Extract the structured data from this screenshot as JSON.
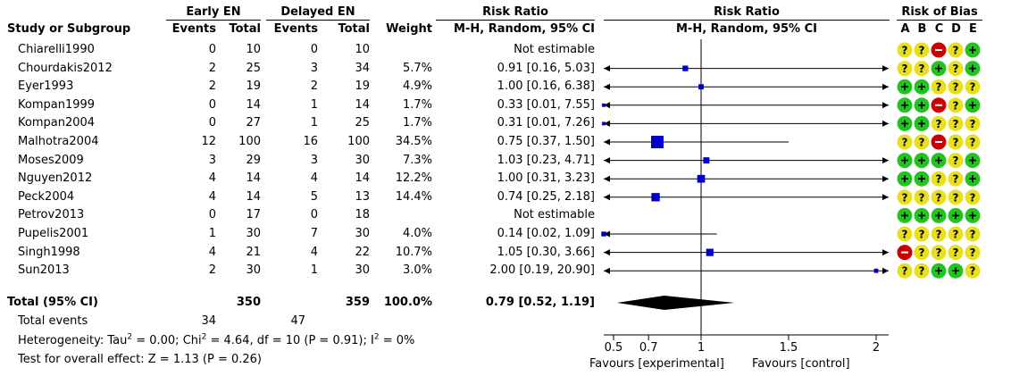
{
  "headers": {
    "early_group": "Early EN",
    "delayed_group": "Delayed EN",
    "rr_group": "Risk Ratio",
    "rr_plot_group": "Risk Ratio",
    "rob_group": "Risk of Bias",
    "study": "Study or Subgroup",
    "events_early": "Events",
    "total_early": "Total",
    "events_delayed": "Events",
    "total_delayed": "Total",
    "weight": "Weight",
    "rr_method": "M-H, Random, 95% CI",
    "rr_plot_method": "M-H, Random, 95% CI",
    "rob_cols": [
      "A",
      "B",
      "C",
      "D",
      "E"
    ]
  },
  "studies": [
    {
      "name": "Chiarelli1990",
      "ee": "0",
      "et": "10",
      "de": "0",
      "dt": "10",
      "weight": "",
      "ci": "Not estimable",
      "rr": null,
      "lo": null,
      "hi": null,
      "w": 0,
      "rob": [
        "?",
        "?",
        "-",
        "?",
        "+"
      ]
    },
    {
      "name": "Chourdakis2012",
      "ee": "2",
      "et": "25",
      "de": "3",
      "dt": "34",
      "weight": "5.7%",
      "ci": "0.91 [0.16, 5.03]",
      "rr": 0.91,
      "lo": 0.16,
      "hi": 5.03,
      "w": 5.7,
      "rob": [
        "?",
        "?",
        "+",
        "?",
        "+"
      ]
    },
    {
      "name": "Eyer1993",
      "ee": "2",
      "et": "19",
      "de": "2",
      "dt": "19",
      "weight": "4.9%",
      "ci": "1.00 [0.16, 6.38]",
      "rr": 1.0,
      "lo": 0.16,
      "hi": 6.38,
      "w": 4.9,
      "rob": [
        "+",
        "+",
        "?",
        "?",
        "?"
      ]
    },
    {
      "name": "Kompan1999",
      "ee": "0",
      "et": "14",
      "de": "1",
      "dt": "14",
      "weight": "1.7%",
      "ci": "0.33 [0.01, 7.55]",
      "rr": 0.33,
      "lo": 0.01,
      "hi": 7.55,
      "w": 1.7,
      "rob": [
        "+",
        "+",
        "-",
        "?",
        "+"
      ]
    },
    {
      "name": "Kompan2004",
      "ee": "0",
      "et": "27",
      "de": "1",
      "dt": "25",
      "weight": "1.7%",
      "ci": "0.31 [0.01, 7.26]",
      "rr": 0.31,
      "lo": 0.01,
      "hi": 7.26,
      "w": 1.7,
      "rob": [
        "+",
        "+",
        "?",
        "?",
        "?"
      ]
    },
    {
      "name": "Malhotra2004",
      "ee": "12",
      "et": "100",
      "de": "16",
      "dt": "100",
      "weight": "34.5%",
      "ci": "0.75 [0.37, 1.50]",
      "rr": 0.75,
      "lo": 0.37,
      "hi": 1.5,
      "w": 34.5,
      "rob": [
        "?",
        "?",
        "-",
        "?",
        "?"
      ]
    },
    {
      "name": "Moses2009",
      "ee": "3",
      "et": "29",
      "de": "3",
      "dt": "30",
      "weight": "7.3%",
      "ci": "1.03 [0.23, 4.71]",
      "rr": 1.03,
      "lo": 0.23,
      "hi": 4.71,
      "w": 7.3,
      "rob": [
        "+",
        "+",
        "+",
        "?",
        "+"
      ]
    },
    {
      "name": "Nguyen2012",
      "ee": "4",
      "et": "14",
      "de": "4",
      "dt": "14",
      "weight": "12.2%",
      "ci": "1.00 [0.31, 3.23]",
      "rr": 1.0,
      "lo": 0.31,
      "hi": 3.23,
      "w": 12.2,
      "rob": [
        "+",
        "+",
        "?",
        "?",
        "+"
      ]
    },
    {
      "name": "Peck2004",
      "ee": "4",
      "et": "14",
      "de": "5",
      "dt": "13",
      "weight": "14.4%",
      "ci": "0.74 [0.25, 2.18]",
      "rr": 0.74,
      "lo": 0.25,
      "hi": 2.18,
      "w": 14.4,
      "rob": [
        "?",
        "?",
        "?",
        "?",
        "?"
      ]
    },
    {
      "name": "Petrov2013",
      "ee": "0",
      "et": "17",
      "de": "0",
      "dt": "18",
      "weight": "",
      "ci": "Not estimable",
      "rr": null,
      "lo": null,
      "hi": null,
      "w": 0,
      "rob": [
        "+",
        "+",
        "+",
        "+",
        "+"
      ]
    },
    {
      "name": "Pupelis2001",
      "ee": "1",
      "et": "30",
      "de": "7",
      "dt": "30",
      "weight": "4.0%",
      "ci": "0.14 [0.02, 1.09]",
      "rr": 0.14,
      "lo": 0.02,
      "hi": 1.09,
      "w": 4.0,
      "rob": [
        "?",
        "?",
        "?",
        "?",
        "?"
      ]
    },
    {
      "name": "Singh1998",
      "ee": "4",
      "et": "21",
      "de": "4",
      "dt": "22",
      "weight": "10.7%",
      "ci": "1.05 [0.30, 3.66]",
      "rr": 1.05,
      "lo": 0.3,
      "hi": 3.66,
      "w": 10.7,
      "rob": [
        "-",
        "?",
        "?",
        "?",
        "?"
      ]
    },
    {
      "name": "Sun2013",
      "ee": "2",
      "et": "30",
      "de": "1",
      "dt": "30",
      "weight": "3.0%",
      "ci": "2.00 [0.19, 20.90]",
      "rr": 2.0,
      "lo": 0.19,
      "hi": 20.9,
      "w": 3.0,
      "rob": [
        "?",
        "?",
        "+",
        "+",
        "?"
      ]
    }
  ],
  "total": {
    "label": "Total (95% CI)",
    "et": "350",
    "dt": "359",
    "weight": "100.0%",
    "ci": "0.79 [0.52, 1.19]",
    "rr": 0.79,
    "lo": 0.52,
    "hi": 1.19,
    "events_label": "Total events",
    "events_early": "34",
    "events_delayed": "47",
    "heterogeneity_pre": "Heterogeneity: Tau",
    "heterogeneity_a": " = 0.00; Chi",
    "heterogeneity_b": " = 4.64, df = 10 (P = 0.91); I",
    "heterogeneity_c": " = 0%",
    "sup2": "2",
    "overall_effect": "Test for overall effect: Z = 1.13 (P = 0.26)"
  },
  "chart_data": {
    "type": "forest",
    "scale": "linear",
    "xlim": [
      0.5,
      2
    ],
    "ticks": [
      0.5,
      0.7,
      1,
      1.5,
      2
    ],
    "tick_labels": [
      "0.5",
      "0.7",
      "1",
      "1.5",
      "2"
    ],
    "null_line": 1,
    "xlabel_left": "Favours [experimental]",
    "xlabel_right": "Favours [control]"
  },
  "colors": {
    "square": "#0000c8",
    "plus": "#22c322",
    "question": "#e8e01e",
    "minus": "#cc0000"
  }
}
